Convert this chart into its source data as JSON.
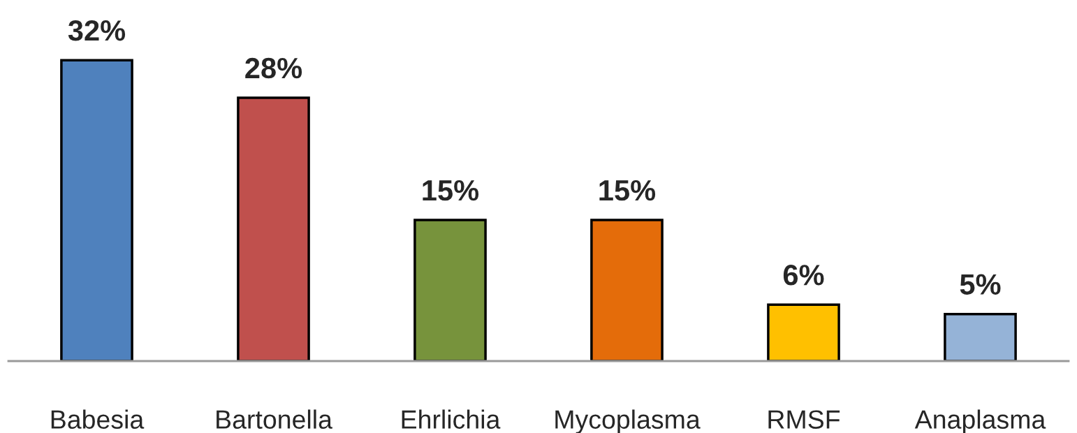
{
  "chart_data": {
    "type": "bar",
    "categories": [
      "Babesia",
      "Bartonella",
      "Ehrlichia",
      "Mycoplasma",
      "RMSF",
      "Anaplasma"
    ],
    "values": [
      32,
      28,
      15,
      15,
      6,
      5
    ],
    "colors": [
      "#4f81bd",
      "#c0504d",
      "#77933c",
      "#e46c0a",
      "#ffc000",
      "#95b3d7"
    ],
    "value_labels": [
      "32%",
      "28%",
      "15%",
      "15%",
      "6%",
      "5%"
    ],
    "grid": false,
    "legend": false
  }
}
